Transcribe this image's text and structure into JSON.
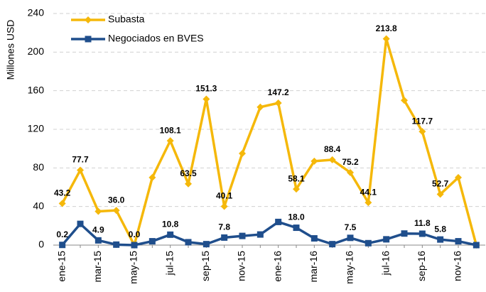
{
  "chart_data": {
    "type": "line",
    "y_label": "Millones USD",
    "categories": [
      "ene-15",
      null,
      "mar-15",
      null,
      "may-15",
      null,
      "jul-15",
      null,
      "sep-15",
      null,
      "nov-15",
      null,
      "ene-16",
      null,
      "mar-16",
      null,
      "may-16",
      null,
      "jul-16",
      null,
      "sep-16",
      null,
      "nov-16",
      null
    ],
    "series": [
      {
        "name": "Subasta",
        "color": "#f5b80a",
        "values": [
          43.2,
          77.7,
          35,
          36,
          0,
          70,
          108.1,
          63.5,
          151.3,
          40.1,
          95,
          143,
          147.2,
          58.1,
          87,
          88.4,
          75.2,
          44.1,
          213.8,
          150,
          117.7,
          52.7,
          70,
          0
        ],
        "value_labels": [
          "43.2",
          "77.7",
          null,
          "36.0",
          "0.0",
          null,
          "108.1",
          "63.5",
          "151.3",
          "40.1",
          null,
          null,
          "147.2",
          "58.1",
          null,
          "88.4",
          "75.2",
          "44.1",
          "213.8",
          null,
          "117.7",
          "52.7",
          null,
          null
        ]
      },
      {
        "name": "Negociados en BVES",
        "color": "#1f4e8c",
        "values": [
          0.2,
          22,
          4.9,
          0.5,
          0,
          4,
          10.8,
          3,
          1,
          7.8,
          9.5,
          11,
          24,
          18,
          7,
          1,
          7.5,
          2,
          6,
          12,
          11.8,
          5.8,
          4,
          0
        ],
        "value_labels": [
          "0.2",
          null,
          "4.9",
          null,
          null,
          null,
          "10.8",
          null,
          null,
          "7.8",
          null,
          null,
          null,
          "18.0",
          null,
          null,
          "7.5",
          null,
          null,
          null,
          "11.8",
          "5.8",
          null,
          null
        ]
      }
    ],
    "ylim": [
      0,
      240
    ],
    "yticks": [
      0,
      40,
      80,
      120,
      160,
      200,
      240
    ],
    "grid": true,
    "legend": "top-left"
  }
}
